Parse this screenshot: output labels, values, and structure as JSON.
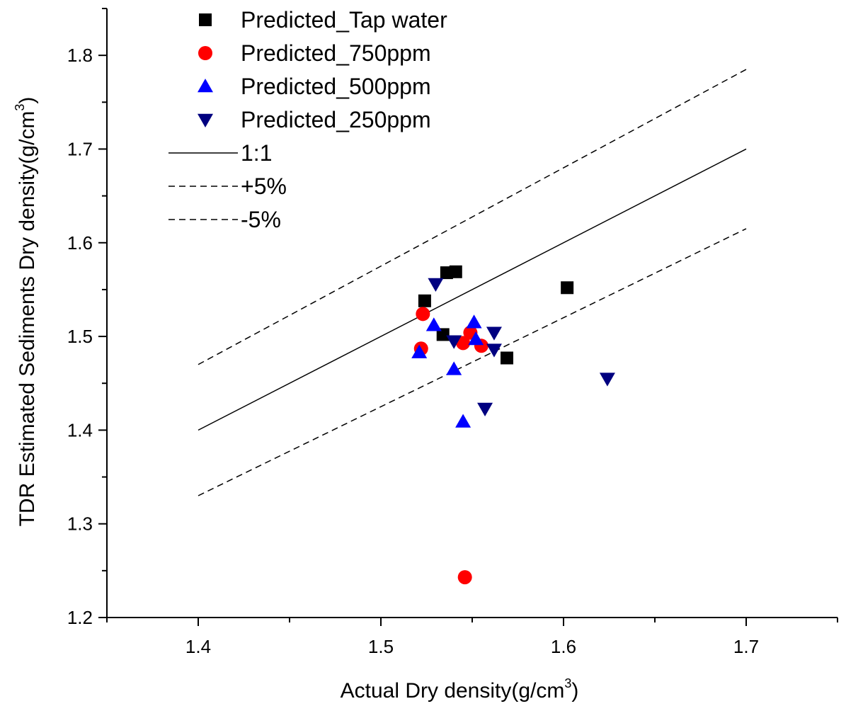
{
  "chart_data": {
    "type": "scatter",
    "xlabel": "Actual Dry density(g/cm",
    "xlabel_sup": "3",
    "xlabel_end": ")",
    "ylabel": "TDR Estimated Sediments Dry density(g/cm",
    "ylabel_sup": "3",
    "ylabel_end": ")",
    "xlim": [
      1.35,
      1.75
    ],
    "ylim": [
      1.2,
      1.85
    ],
    "x_ticks": [
      1.4,
      1.5,
      1.6,
      1.7
    ],
    "y_ticks": [
      1.2,
      1.3,
      1.4,
      1.5,
      1.6,
      1.7,
      1.8
    ],
    "x_tick_labels": [
      "1.4",
      "1.5",
      "1.6",
      "1.7"
    ],
    "y_tick_labels": [
      "1.2",
      "1.3",
      "1.4",
      "1.5",
      "1.6",
      "1.7",
      "1.8"
    ],
    "legend_position": "top-left",
    "series": [
      {
        "name": "Predicted_Tap water",
        "marker": "square",
        "color": "#000000",
        "points": [
          [
            1.524,
            1.538
          ],
          [
            1.536,
            1.568
          ],
          [
            1.541,
            1.569
          ],
          [
            1.534,
            1.502
          ],
          [
            1.602,
            1.552
          ],
          [
            1.569,
            1.477
          ]
        ]
      },
      {
        "name": "Predicted_750ppm",
        "marker": "circle",
        "color": "#ff0000",
        "points": [
          [
            1.523,
            1.524
          ],
          [
            1.522,
            1.487
          ],
          [
            1.549,
            1.504
          ],
          [
            1.545,
            1.493
          ],
          [
            1.555,
            1.49
          ],
          [
            1.546,
            1.243
          ]
        ]
      },
      {
        "name": "Predicted_500ppm",
        "marker": "triangle-up",
        "color": "#0000ff",
        "points": [
          [
            1.521,
            1.483
          ],
          [
            1.529,
            1.512
          ],
          [
            1.551,
            1.515
          ],
          [
            1.552,
            1.497
          ],
          [
            1.54,
            1.465
          ],
          [
            1.545,
            1.409
          ]
        ]
      },
      {
        "name": "Predicted_250ppm",
        "marker": "triangle-down",
        "color": "#000080",
        "points": [
          [
            1.53,
            1.556
          ],
          [
            1.54,
            1.495
          ],
          [
            1.562,
            1.504
          ],
          [
            1.562,
            1.486
          ],
          [
            1.557,
            1.423
          ],
          [
            1.624,
            1.455
          ]
        ]
      }
    ],
    "lines": [
      {
        "name": "1:1",
        "style": "solid",
        "points": [
          [
            1.4,
            1.4
          ],
          [
            1.7,
            1.7
          ]
        ]
      },
      {
        "name": "+5%",
        "style": "dashed",
        "points": [
          [
            1.4,
            1.47
          ],
          [
            1.7,
            1.785
          ]
        ]
      },
      {
        "name": "-5%",
        "style": "dashed",
        "points": [
          [
            1.4,
            1.33
          ],
          [
            1.7,
            1.615
          ]
        ]
      }
    ]
  }
}
